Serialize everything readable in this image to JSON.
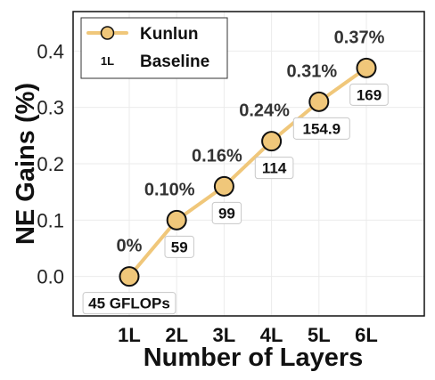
{
  "chart_data": {
    "type": "line",
    "xlabel": "Number of Layers",
    "ylabel": "NE Gains (%)",
    "categories": [
      "1L",
      "2L",
      "3L",
      "4L",
      "5L",
      "6L"
    ],
    "ylim": [
      -0.07,
      0.47
    ],
    "yticks": [
      0.0,
      0.1,
      0.2,
      0.3,
      0.4
    ],
    "ytick_labels": [
      "0.0",
      "0.1",
      "0.2",
      "0.3",
      "0.4"
    ],
    "grid": true,
    "legend_position": "top-left",
    "series": [
      {
        "name": "Kunlun",
        "color": "#f0c77a",
        "values": [
          0.0,
          0.1,
          0.16,
          0.24,
          0.31,
          0.37
        ],
        "point_labels": [
          "0%",
          "0.10%",
          "0.16%",
          "0.24%",
          "0.31%",
          "0.37%"
        ],
        "annotations": [
          "45 GFLOPs",
          "59",
          "99",
          "114",
          "154.9",
          "169"
        ]
      }
    ],
    "baseline": {
      "name": "Baseline",
      "marker_text": "1L"
    }
  }
}
